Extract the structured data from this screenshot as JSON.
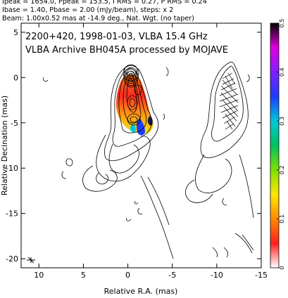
{
  "header": {
    "line1": "Ipeak = 1654.0, Ppeak = 153.5, I RMS = 0.27, P RMS = 0.24",
    "line2": "Ibase = 1.40, Pbase = 2.00 (mJy/beam), steps: x 2",
    "line3": "Beam: 1.00x0.52 mas at -14.9 deg., Nat. Wgt. (no taper)"
  },
  "chart_data": {
    "type": "heatmap",
    "title_line1": "2200+420, 1998-01-03, VLBA 15.4 GHz",
    "title_line2": "VLBA Archive BH045A processed by MOJAVE",
    "xlabel": "Relative R.A. (mas)",
    "ylabel": "Relative Decination (mas)",
    "xlim": [
      12,
      -15
    ],
    "ylim": [
      -21,
      6
    ],
    "xticks": [
      10,
      5,
      0,
      -5,
      -10,
      -15
    ],
    "yticks": [
      5,
      0,
      -5,
      -10,
      -15,
      -20
    ],
    "colorbar": {
      "range": [
        0,
        0.5
      ],
      "ticks": [
        0,
        0.1,
        0.2,
        0.3,
        0.4,
        0.5
      ],
      "colors": [
        "#ffffff",
        "#ff2020",
        "#ff8a00",
        "#ffe600",
        "#7ee000",
        "#00c060",
        "#00c8d8",
        "#1e3cff",
        "#8020ff",
        "#e000e0",
        "#000000"
      ]
    },
    "total_intensity_contour_levels_mJy_per_beam": [
      1.4,
      2.8,
      5.6,
      11.2,
      22.4,
      44.8,
      89.6,
      179.2,
      358.4,
      716.8,
      1433.6
    ],
    "core": {
      "x": 0.0,
      "y": 0.0
    },
    "jet_direction": "south"
  }
}
